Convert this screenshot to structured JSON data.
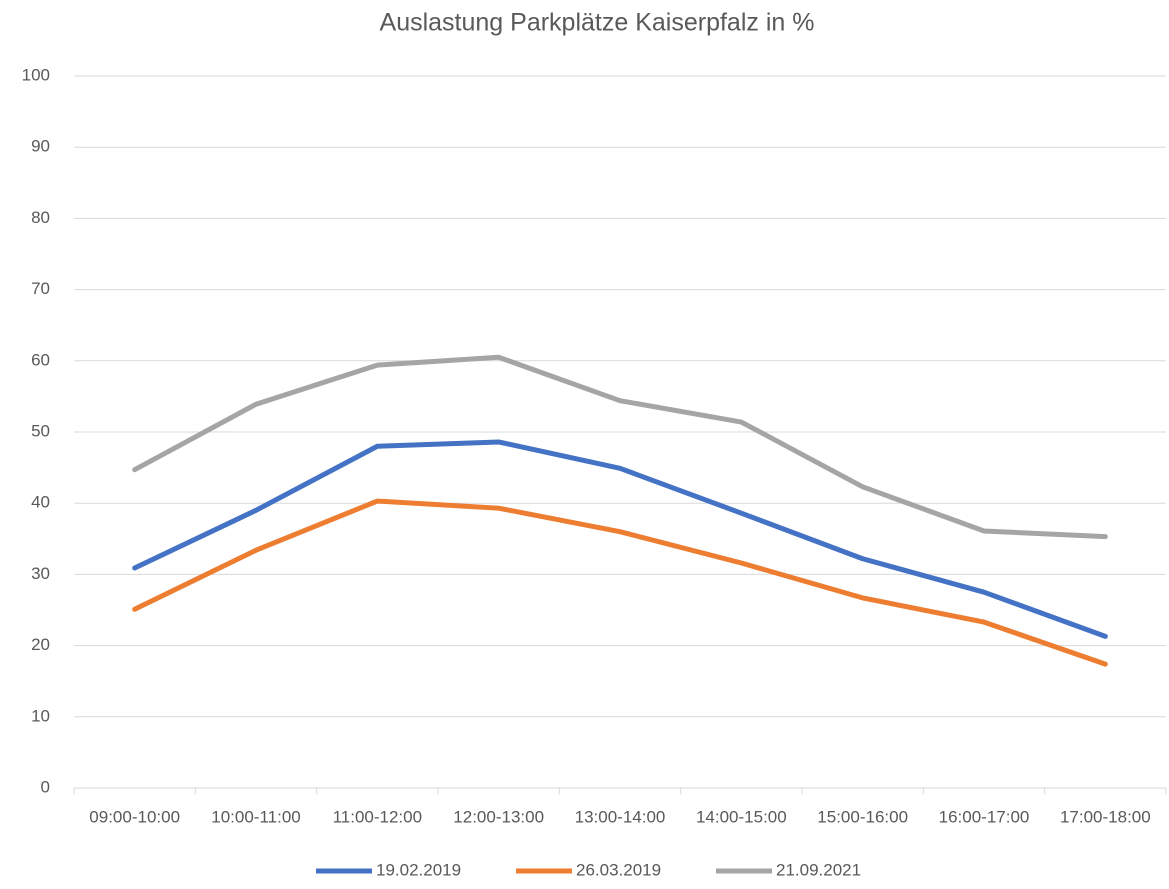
{
  "chart_data": {
    "type": "line",
    "title": "Auslastung Parkplätze Kaiserpfalz in %",
    "categories": [
      "09:00-10:00",
      "10:00-11:00",
      "11:00-12:00",
      "12:00-13:00",
      "13:00-14:00",
      "14:00-15:00",
      "15:00-16:00",
      "16:00-17:00",
      "17:00-18:00"
    ],
    "series": [
      {
        "name": "19.02.2019",
        "color": "#4472c4",
        "values": [
          30.9,
          39.0,
          48.0,
          48.6,
          44.9,
          38.6,
          32.2,
          27.5,
          21.3
        ]
      },
      {
        "name": "26.03.2019",
        "color": "#ed7d31",
        "values": [
          25.1,
          33.4,
          40.3,
          39.3,
          36.0,
          31.6,
          26.7,
          23.3,
          17.4
        ]
      },
      {
        "name": "21.09.2021",
        "color": "#a5a5a5",
        "values": [
          44.7,
          53.9,
          59.4,
          60.5,
          54.4,
          51.4,
          42.3,
          36.1,
          35.3
        ]
      }
    ],
    "ylim": [
      0,
      100
    ],
    "yticks": [
      0,
      10,
      20,
      30,
      40,
      50,
      60,
      70,
      80,
      90,
      100
    ],
    "grid": true,
    "legend": "bottom"
  }
}
